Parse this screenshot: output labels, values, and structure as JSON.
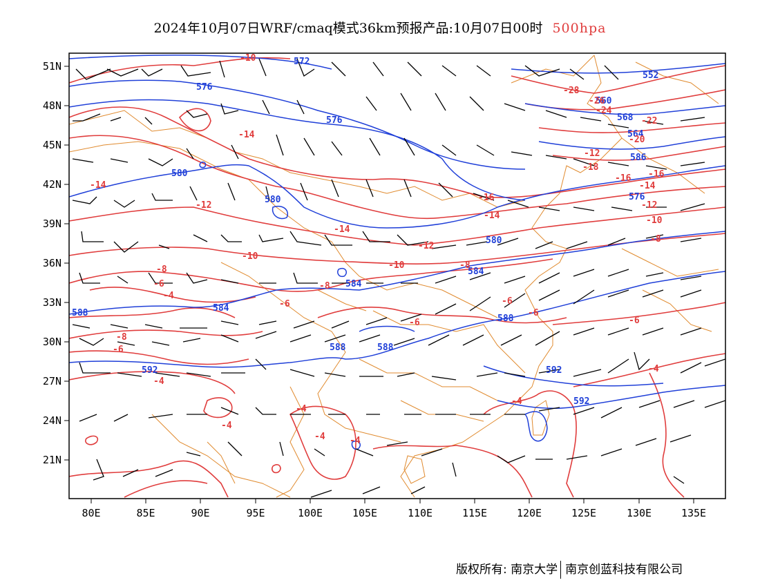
{
  "title": {
    "main": "2024年10月07日WRF/cmaq模式36km预报产品:10月07日00时",
    "level": "500hpa"
  },
  "colors": {
    "height_contour": "#1f3fd8",
    "temperature_contour": "#e03c3c",
    "coastline_border": "#e08a2e",
    "wind_barb": "#000000",
    "level_text": "#e03c3c"
  },
  "axes": {
    "x_ticks": [
      "80E",
      "85E",
      "90E",
      "95E",
      "100E",
      "105E",
      "110E",
      "115E",
      "120E",
      "125E",
      "130E",
      "135E"
    ],
    "y_ticks": [
      "51N",
      "48N",
      "45N",
      "42N",
      "39N",
      "36N",
      "33N",
      "30N",
      "27N",
      "24N",
      "21N"
    ]
  },
  "height_labels": [
    "572",
    "576",
    "552",
    "576",
    "568",
    "580",
    "584",
    "588",
    "592",
    "586",
    "560",
    "564",
    "580",
    "584",
    "588",
    "588",
    "588",
    "592",
    "592",
    "584",
    "580",
    "576"
  ],
  "temperature_labels": [
    "-10",
    "-14",
    "-14",
    "-12",
    "-10",
    "-14",
    "-12",
    "-10",
    "-8",
    "-8",
    "-6",
    "-6",
    "-6",
    "-4",
    "-6",
    "-8",
    "-6",
    "-4",
    "-4",
    "-4",
    "-4",
    "-4",
    "-4",
    "-6",
    "-8",
    "-6",
    "-4",
    "-28",
    "-26",
    "-24",
    "-22",
    "-20",
    "-18",
    "-16",
    "-16",
    "-14",
    "-14",
    "-12",
    "-10",
    "-8",
    "-16",
    "-12"
  ],
  "credit": {
    "left": "版权所有: 南京大学",
    "right": "南京创蓝科技有限公司"
  }
}
